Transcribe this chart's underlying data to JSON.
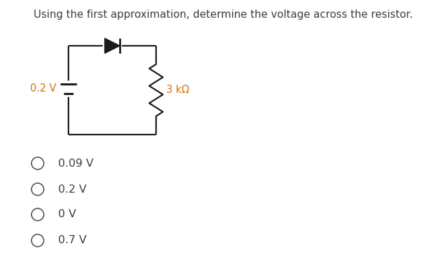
{
  "title": "Using the first approximation, determine the voltage across the resistor.",
  "title_fontsize": 11.0,
  "title_color": "#3d3d3d",
  "background_color": "#ffffff",
  "choices": [
    "0.09 V",
    "0.2 V",
    "0 V",
    "0.7 V"
  ],
  "choice_fontsize": 11.5,
  "choice_color": "#3d3d3d",
  "circuit": {
    "battery_label": "0.2 V",
    "battery_label_color": "#d4700a",
    "resistor_label": "3 kΩ",
    "resistor_label_color": "#d4700a",
    "line_color": "#1a1a1a",
    "line_width": 1.6
  }
}
